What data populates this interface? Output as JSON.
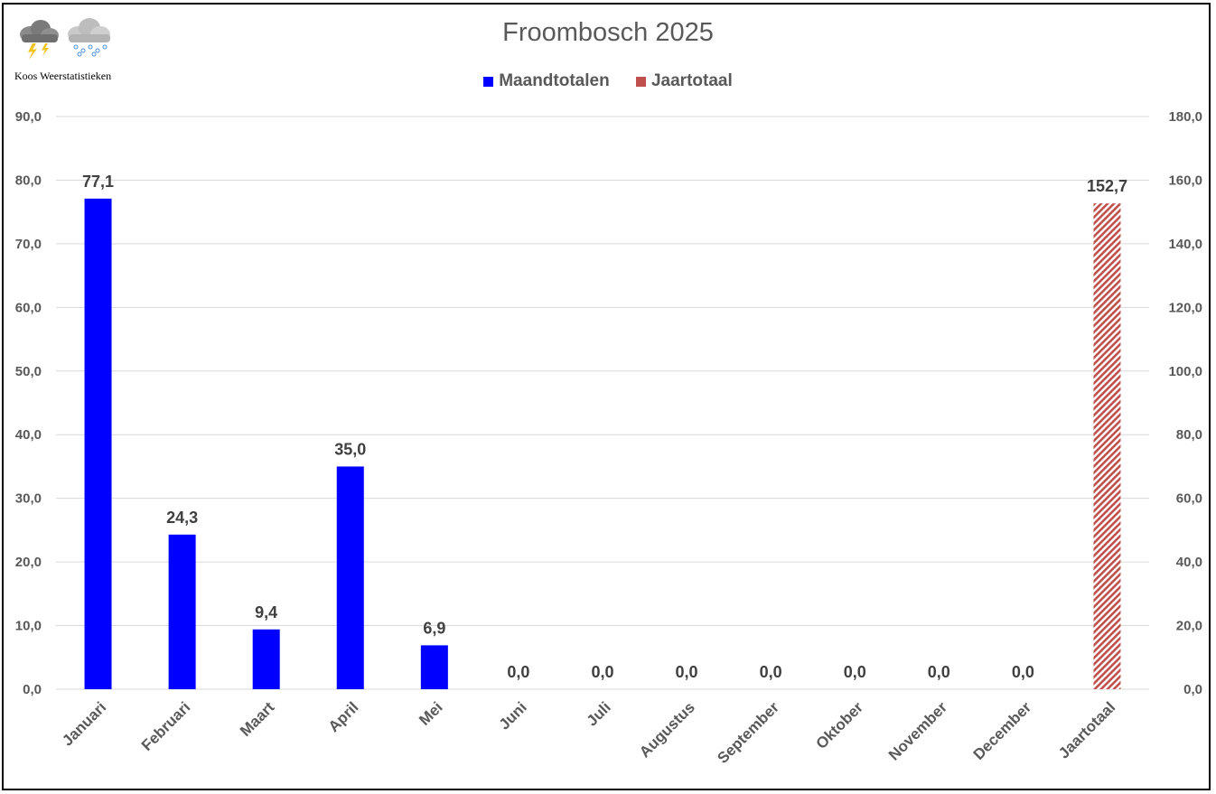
{
  "logo": {
    "text": "Koos Weerstatistieken",
    "icons": [
      "thunderstorm-cloud-icon",
      "snow-cloud-icon"
    ]
  },
  "chart_data": {
    "type": "bar",
    "title": "Froombosch 2025",
    "categories": [
      "Januari",
      "Februari",
      "Maart",
      "April",
      "Mei",
      "Juni",
      "Juli",
      "Augustus",
      "September",
      "Oktober",
      "November",
      "December",
      "Jaartotaal"
    ],
    "series": [
      {
        "name": "Maandtotalen",
        "axis": "left",
        "color": "#0000FF",
        "values": [
          77.1,
          24.3,
          9.4,
          35.0,
          6.9,
          0.0,
          0.0,
          0.0,
          0.0,
          0.0,
          0.0,
          0.0,
          null
        ],
        "labels": [
          "77,1",
          "24,3",
          "9,4",
          "35,0",
          "6,9",
          "0,0",
          "0,0",
          "0,0",
          "0,0",
          "0,0",
          "0,0",
          "0,0",
          ""
        ]
      },
      {
        "name": "Jaartotaal",
        "axis": "right",
        "color": "#C0504D",
        "pattern": "diagonal-hatch",
        "values": [
          null,
          null,
          null,
          null,
          null,
          null,
          null,
          null,
          null,
          null,
          null,
          null,
          152.7
        ],
        "labels": [
          "",
          "",
          "",
          "",
          "",
          "",
          "",
          "",
          "",
          "",
          "",
          "",
          "152,7"
        ]
      }
    ],
    "y_left": {
      "min": 0,
      "max": 90,
      "ticks": [
        "0,0",
        "10,0",
        "20,0",
        "30,0",
        "40,0",
        "50,0",
        "60,0",
        "70,0",
        "80,0",
        "90,0"
      ]
    },
    "y_right": {
      "min": 0,
      "max": 180,
      "ticks": [
        "0,0",
        "20,0",
        "40,0",
        "60,0",
        "80,0",
        "100,0",
        "120,0",
        "140,0",
        "160,0",
        "180,0"
      ]
    },
    "grid": true,
    "legend": "top-center"
  }
}
